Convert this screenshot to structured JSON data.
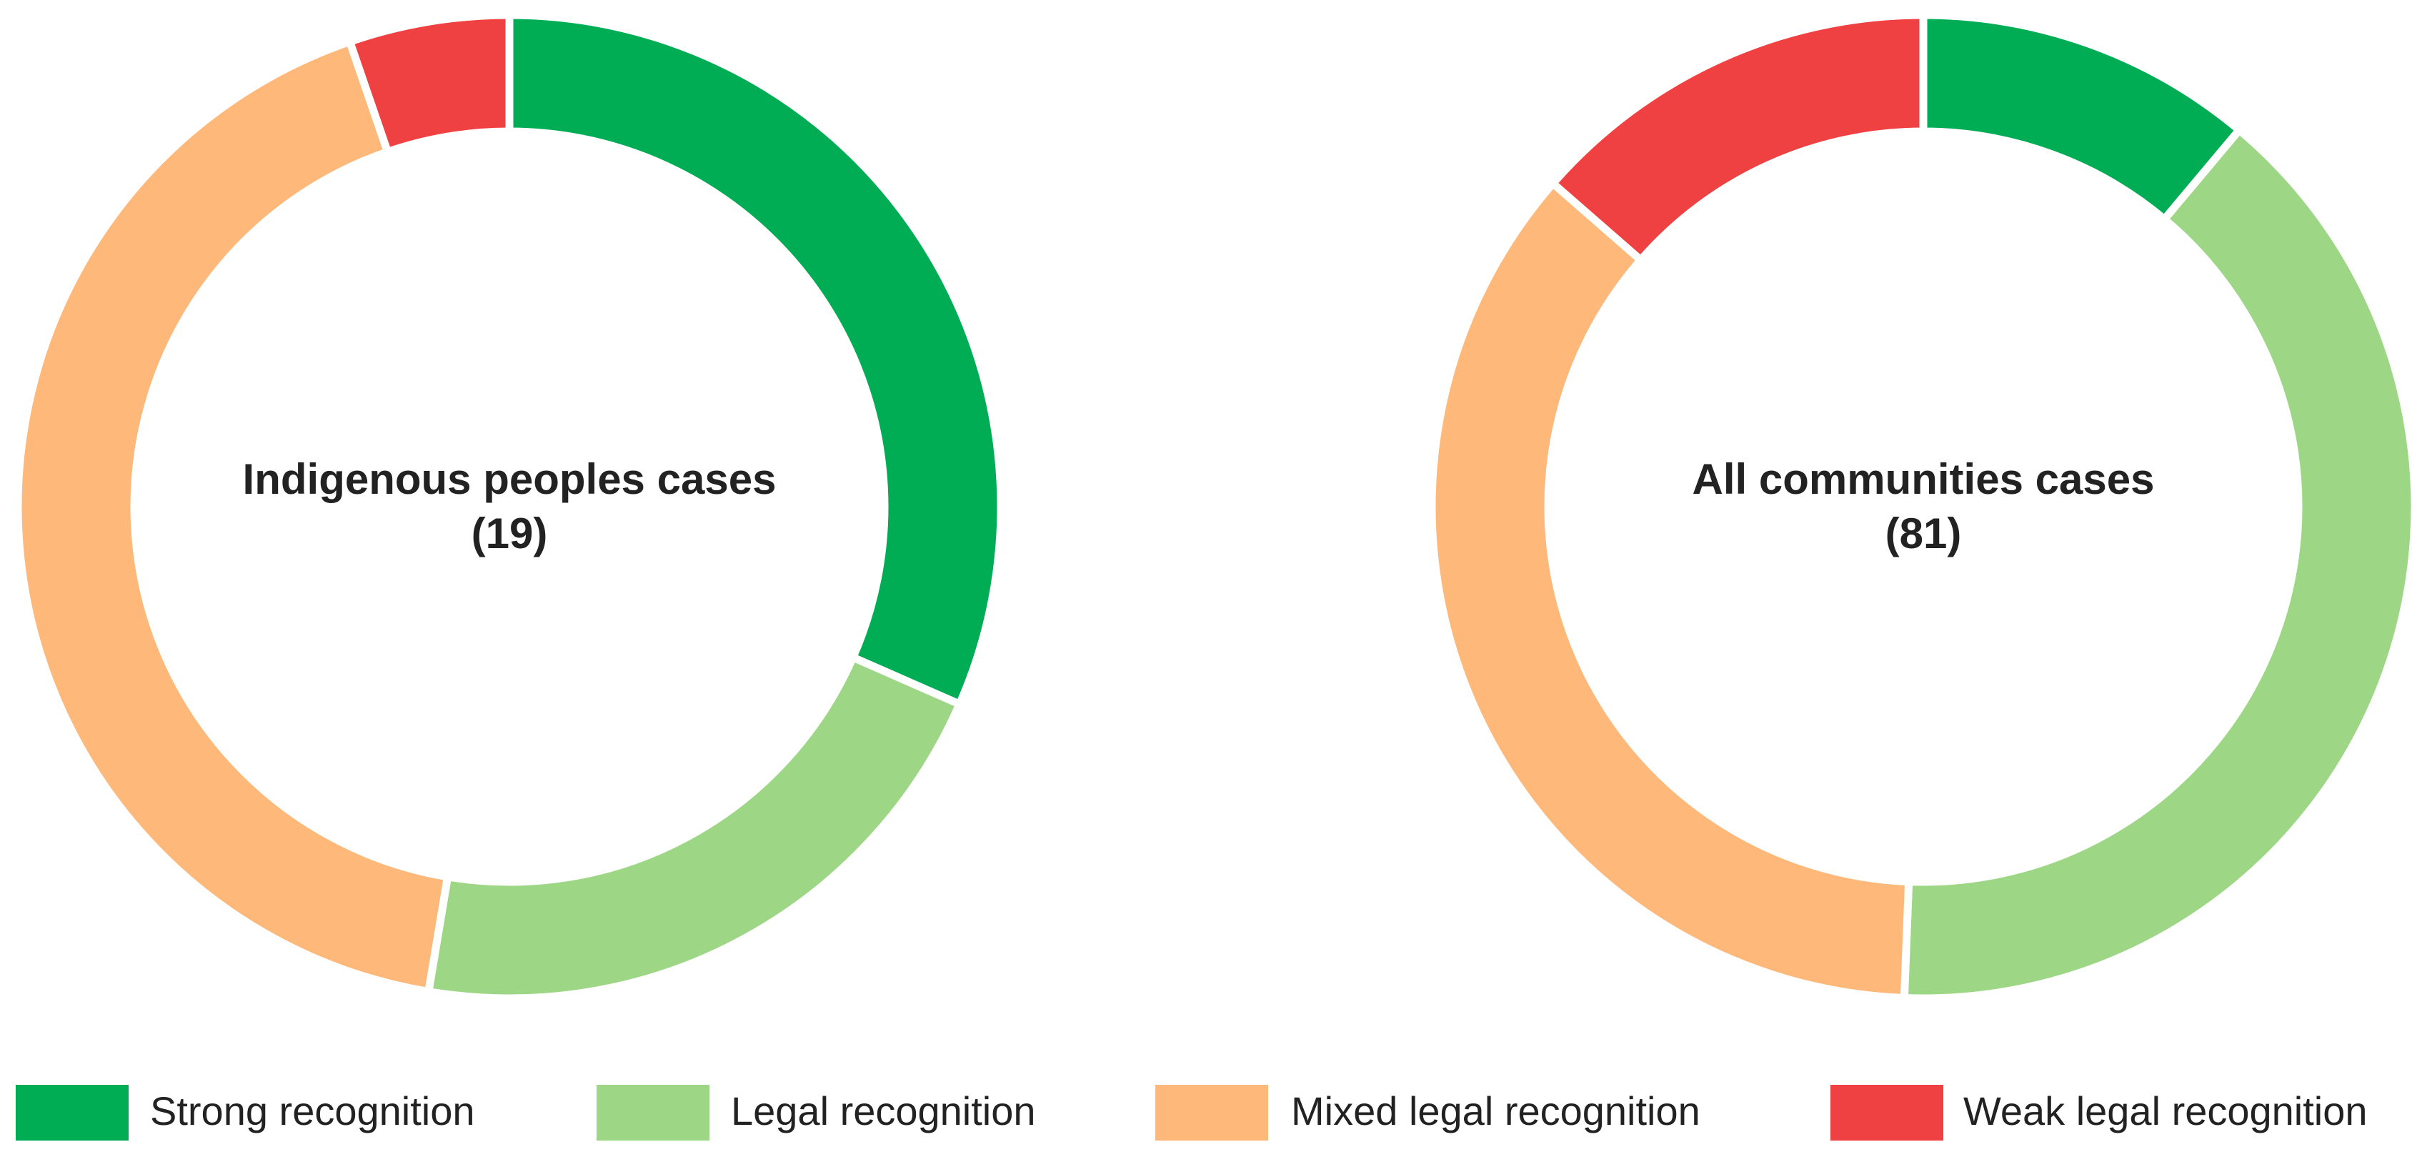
{
  "chart_data": [
    {
      "type": "donut",
      "title": "Indigenous peoples cases (19)",
      "categories": [
        "Strong recognition",
        "Legal recognition",
        "Mixed legal recognition",
        "Weak legal recognition"
      ],
      "values": [
        6,
        4,
        8,
        1
      ],
      "colors": [
        "#00ad55",
        "#9dd786",
        "#fdb87a",
        "#f04142"
      ]
    },
    {
      "type": "donut",
      "title": "All communities cases (81)",
      "categories": [
        "Strong recognition",
        "Legal recognition",
        "Mixed legal recognition",
        "Weak legal recognition"
      ],
      "values": [
        9,
        32,
        29,
        11
      ],
      "colors": [
        "#00ad55",
        "#9dd786",
        "#fdb87a",
        "#f04142"
      ]
    }
  ]
}
